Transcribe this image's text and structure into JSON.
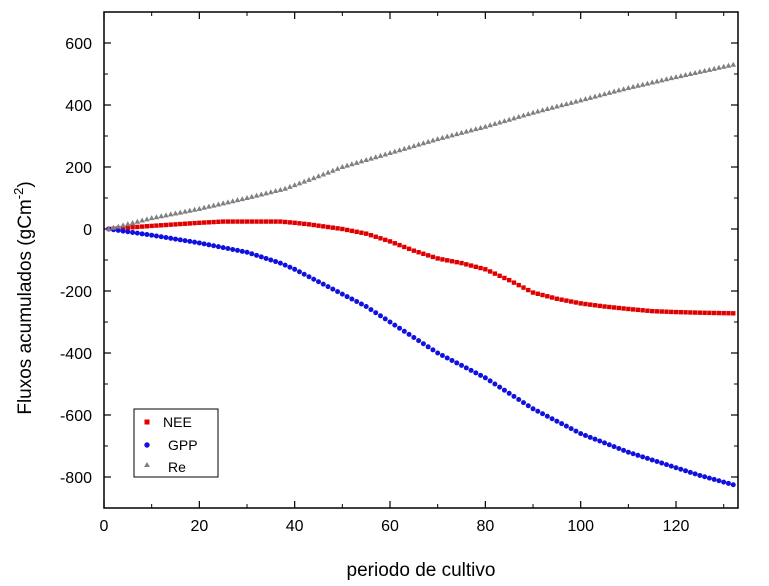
{
  "chart_data": {
    "type": "scatter",
    "title": "",
    "xlabel": "periodo de cultivo",
    "ylabel": {
      "text": "Fluxos acumulados (gCm",
      "sup": "-2",
      "close": ")"
    },
    "xlim": [
      0,
      133
    ],
    "ylim": [
      -900,
      700
    ],
    "x_ticks": [
      0,
      20,
      40,
      60,
      80,
      100,
      120
    ],
    "y_ticks": [
      -800,
      -600,
      -400,
      -200,
      0,
      200,
      400,
      600
    ],
    "x_tick_labels": [
      "0",
      "20",
      "40",
      "60",
      "80",
      "100",
      "120"
    ],
    "y_tick_labels": [
      "-800",
      "-600",
      "-400",
      "-200",
      "0",
      "200",
      "400",
      "600"
    ],
    "grid": false,
    "legend_position": "bottom-left",
    "series": [
      {
        "name": "NEE",
        "marker": "square",
        "color": "#e00000",
        "x": [
          1,
          10,
          20,
          25,
          30,
          37,
          40,
          43,
          50,
          55,
          60,
          65,
          70,
          75,
          80,
          85,
          90,
          95,
          100,
          105,
          110,
          115,
          120,
          125,
          132
        ],
        "y": [
          0,
          10,
          20,
          24,
          24,
          24,
          20,
          15,
          0,
          -15,
          -40,
          -70,
          -95,
          -110,
          -130,
          -165,
          -205,
          -225,
          -240,
          -250,
          -258,
          -265,
          -268,
          -270,
          -272
        ]
      },
      {
        "name": "GPP",
        "marker": "circle",
        "color": "#1010e0",
        "x": [
          1,
          10,
          20,
          30,
          37,
          40,
          45,
          50,
          55,
          60,
          65,
          70,
          75,
          80,
          85,
          90,
          95,
          100,
          105,
          110,
          115,
          120,
          125,
          132
        ],
        "y": [
          0,
          -20,
          -45,
          -75,
          -110,
          -130,
          -170,
          -210,
          -250,
          -300,
          -350,
          -400,
          -440,
          -480,
          -530,
          -580,
          -620,
          -660,
          -690,
          -720,
          -745,
          -770,
          -795,
          -825
        ]
      },
      {
        "name": "Re",
        "marker": "triangle",
        "color": "#808080",
        "x": [
          1,
          10,
          20,
          30,
          38,
          45,
          50,
          60,
          70,
          80,
          90,
          100,
          110,
          120,
          132
        ],
        "y": [
          0,
          35,
          65,
          100,
          130,
          170,
          200,
          245,
          290,
          330,
          375,
          415,
          455,
          490,
          530
        ]
      }
    ]
  }
}
